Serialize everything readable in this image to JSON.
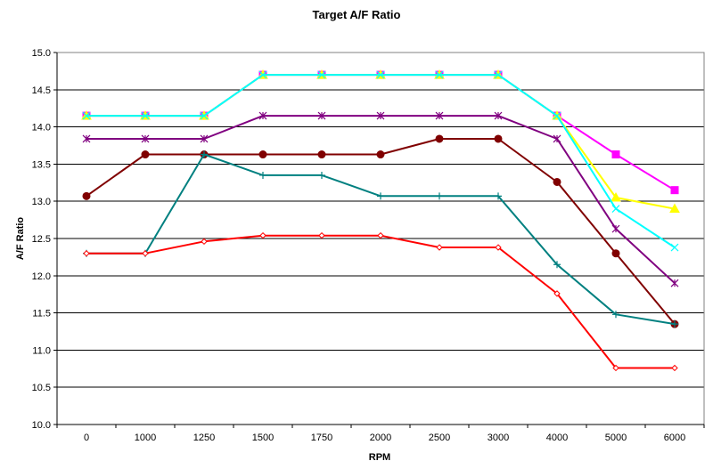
{
  "chart_data": {
    "type": "line",
    "title": "Target A/F Ratio",
    "xlabel": "RPM",
    "ylabel": "A/F Ratio",
    "categories": [
      "0",
      "1000",
      "1250",
      "1500",
      "1750",
      "2000",
      "2500",
      "3000",
      "4000",
      "5000",
      "6000"
    ],
    "ylim": [
      10.0,
      15.0
    ],
    "ytick_step": 0.5,
    "ytick_labels": [
      "10.0",
      "10.5",
      "11.0",
      "11.5",
      "12.0",
      "12.5",
      "13.0",
      "13.5",
      "14.0",
      "14.5",
      "15.0"
    ],
    "grid": true,
    "legend": "none",
    "plot_background": "#ffffff",
    "series": [
      {
        "color": "#ff00ff",
        "marker": "square",
        "values": [
          14.15,
          14.15,
          14.15,
          14.7,
          14.7,
          14.7,
          14.7,
          14.7,
          14.15,
          13.63,
          13.15
        ]
      },
      {
        "color": "#ffff00",
        "marker": "triangle",
        "values": [
          14.15,
          14.15,
          14.15,
          14.7,
          14.7,
          14.7,
          14.7,
          14.7,
          14.15,
          13.05,
          12.9
        ]
      },
      {
        "color": "#00ffff",
        "marker": "x",
        "values": [
          14.15,
          14.15,
          14.15,
          14.7,
          14.7,
          14.7,
          14.7,
          14.7,
          14.15,
          12.9,
          12.38
        ]
      },
      {
        "color": "#800080",
        "marker": "asterisk",
        "values": [
          13.84,
          13.84,
          13.84,
          14.15,
          14.15,
          14.15,
          14.15,
          14.15,
          13.84,
          12.63,
          11.9
        ]
      },
      {
        "color": "#800000",
        "marker": "circle",
        "values": [
          13.07,
          13.63,
          13.63,
          13.63,
          13.63,
          13.63,
          13.84,
          13.84,
          13.26,
          12.3,
          11.35
        ]
      },
      {
        "color": "#008080",
        "marker": "plus",
        "values": [
          12.3,
          12.3,
          13.63,
          13.35,
          13.35,
          13.07,
          13.07,
          13.07,
          12.15,
          11.48,
          11.35
        ]
      },
      {
        "color": "#ff0000",
        "marker": "diamond",
        "values": [
          12.3,
          12.3,
          12.46,
          12.54,
          12.54,
          12.54,
          12.38,
          12.38,
          11.76,
          10.76,
          10.76
        ]
      }
    ]
  }
}
